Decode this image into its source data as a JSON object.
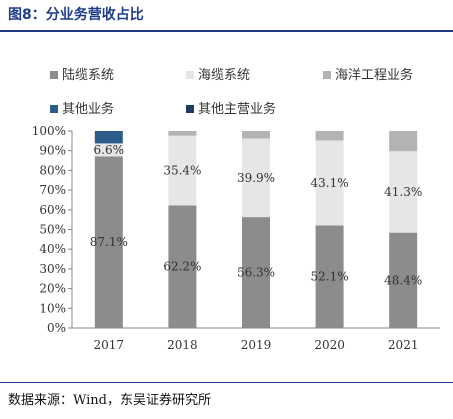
{
  "figure": {
    "title": "图8：分业务营收占比",
    "source": "数据来源：Wind，东吴证券研究所"
  },
  "chart_data": {
    "type": "bar",
    "stacked": true,
    "categories": [
      "2017",
      "2018",
      "2019",
      "2020",
      "2021"
    ],
    "series": [
      {
        "name": "陆缆系统",
        "color": "#8c8c8c",
        "values": [
          87.1,
          62.2,
          56.3,
          52.1,
          48.4
        ]
      },
      {
        "name": "海缆系统",
        "color": "#e6e6e6",
        "values": [
          6.6,
          35.4,
          39.9,
          43.1,
          41.3
        ]
      },
      {
        "name": "海洋工程业务",
        "color": "#b3b3b3",
        "values": [
          0,
          2.4,
          3.8,
          4.8,
          10.3
        ]
      },
      {
        "name": "其他业务",
        "color": "#2e5c8a",
        "values": [
          6.3,
          0,
          0,
          0,
          0
        ]
      },
      {
        "name": "其他主营业务",
        "color": "#1f3a5f",
        "values": [
          0,
          0,
          0,
          0,
          0
        ]
      }
    ],
    "data_labels": [
      {
        "category": "2017",
        "series": "陆缆系统",
        "text": "87.1%"
      },
      {
        "category": "2017",
        "series": "海缆系统",
        "text": "6.6%"
      },
      {
        "category": "2018",
        "series": "陆缆系统",
        "text": "62.2%"
      },
      {
        "category": "2018",
        "series": "海缆系统",
        "text": "35.4%"
      },
      {
        "category": "2019",
        "series": "陆缆系统",
        "text": "56.3%"
      },
      {
        "category": "2019",
        "series": "海缆系统",
        "text": "39.9%"
      },
      {
        "category": "2020",
        "series": "陆缆系统",
        "text": "52.1%"
      },
      {
        "category": "2020",
        "series": "海缆系统",
        "text": "43.1%"
      },
      {
        "category": "2021",
        "series": "陆缆系统",
        "text": "48.4%"
      },
      {
        "category": "2021",
        "series": "海缆系统",
        "text": "41.3%"
      }
    ],
    "ylim": [
      0,
      100
    ],
    "yticks": [
      "0%",
      "10%",
      "20%",
      "30%",
      "40%",
      "50%",
      "60%",
      "70%",
      "80%",
      "90%",
      "100%"
    ],
    "legend_position": "top",
    "grid": false
  }
}
